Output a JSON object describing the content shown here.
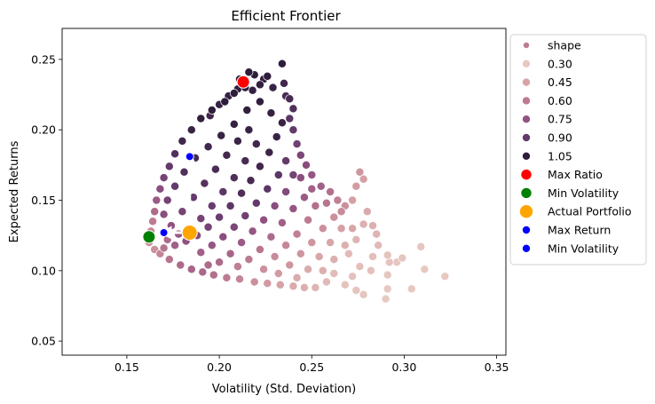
{
  "chart_data": {
    "type": "scatter",
    "title": "Efficient Frontier",
    "xlabel": "Volatility (Std. Deviation)",
    "ylabel": "Expected Returns",
    "xlim": [
      0.115,
      0.355
    ],
    "ylim": [
      0.04,
      0.272
    ],
    "xticks": [
      "0.15",
      "0.20",
      "0.25",
      "0.30",
      "0.35"
    ],
    "xtick_values": [
      0.15,
      0.2,
      0.25,
      0.3,
      0.35
    ],
    "yticks": [
      "0.05",
      "0.10",
      "0.15",
      "0.20",
      "0.25"
    ],
    "ytick_values": [
      0.05,
      0.1,
      0.15,
      0.2,
      0.25
    ],
    "grid": false,
    "legend_position": "outside-right",
    "hue_name": "shape",
    "hue_levels": [
      {
        "label": "0.30",
        "value": 0.3,
        "color": "#e7c9c2"
      },
      {
        "label": "0.45",
        "value": 0.45,
        "color": "#d7a3a6"
      },
      {
        "label": "0.60",
        "value": 0.6,
        "color": "#bd7b91"
      },
      {
        "label": "0.75",
        "value": 0.75,
        "color": "#935382"
      },
      {
        "label": "0.90",
        "value": 0.9,
        "color": "#633a6b"
      },
      {
        "label": "1.05",
        "value": 1.05,
        "color": "#2e1d3b"
      }
    ],
    "highlights": [
      {
        "name": "Max Ratio",
        "x": 0.213,
        "y": 0.234,
        "color": "#ff0000",
        "marker": "large"
      },
      {
        "name": "Min Volatility",
        "x": 0.162,
        "y": 0.124,
        "color": "#008000",
        "marker": "large"
      },
      {
        "name": "Actual Portfolio",
        "x": 0.184,
        "y": 0.127,
        "color": "#ffa500",
        "marker": "xlarge"
      },
      {
        "name": "Max Return",
        "x": 0.184,
        "y": 0.181,
        "color": "#0000ff",
        "marker": "small"
      },
      {
        "name": "Min Volatility",
        "x": 0.17,
        "y": 0.127,
        "color": "#0000ff",
        "marker": "small"
      }
    ],
    "arrows": [
      {
        "from": [
          0.184,
          0.127
        ],
        "to": [
          0.184,
          0.181
        ],
        "color": "#ffffff"
      },
      {
        "from": [
          0.184,
          0.127
        ],
        "to": [
          0.17,
          0.127
        ],
        "color": "#ffffff"
      }
    ],
    "scatter_points": [
      [
        0.162,
        0.12,
        0.5
      ],
      [
        0.163,
        0.128,
        0.55
      ],
      [
        0.164,
        0.135,
        0.6
      ],
      [
        0.165,
        0.142,
        0.66
      ],
      [
        0.166,
        0.15,
        0.72
      ],
      [
        0.168,
        0.158,
        0.78
      ],
      [
        0.17,
        0.166,
        0.84
      ],
      [
        0.173,
        0.174,
        0.9
      ],
      [
        0.176,
        0.183,
        0.95
      ],
      [
        0.18,
        0.192,
        1.0
      ],
      [
        0.185,
        0.2,
        1.02
      ],
      [
        0.19,
        0.208,
        1.04
      ],
      [
        0.196,
        0.214,
        1.05
      ],
      [
        0.203,
        0.22,
        1.05
      ],
      [
        0.208,
        0.226,
        1.06
      ],
      [
        0.214,
        0.23,
        1.05
      ],
      [
        0.219,
        0.239,
        1.07
      ],
      [
        0.224,
        0.236,
        1.04
      ],
      [
        0.229,
        0.23,
        1.02
      ],
      [
        0.234,
        0.247,
        1.06
      ],
      [
        0.235,
        0.233,
        1.0
      ],
      [
        0.222,
        0.232,
        1.04
      ],
      [
        0.218,
        0.228,
        1.03
      ],
      [
        0.211,
        0.236,
        1.05
      ],
      [
        0.216,
        0.241,
        1.08
      ],
      [
        0.226,
        0.238,
        1.05
      ],
      [
        0.21,
        0.229,
        1.04
      ],
      [
        0.205,
        0.224,
        1.03
      ],
      [
        0.2,
        0.218,
        1.02
      ],
      [
        0.195,
        0.21,
        1.0
      ],
      [
        0.238,
        0.222,
        0.98
      ],
      [
        0.24,
        0.215,
        0.95
      ],
      [
        0.238,
        0.208,
        0.92
      ],
      [
        0.236,
        0.224,
        0.97
      ],
      [
        0.24,
        0.2,
        0.9
      ],
      [
        0.242,
        0.19,
        0.86
      ],
      [
        0.244,
        0.182,
        0.82
      ],
      [
        0.247,
        0.175,
        0.78
      ],
      [
        0.25,
        0.168,
        0.74
      ],
      [
        0.255,
        0.16,
        0.7
      ],
      [
        0.26,
        0.156,
        0.64
      ],
      [
        0.264,
        0.15,
        0.58
      ],
      [
        0.268,
        0.146,
        0.52
      ],
      [
        0.272,
        0.15,
        0.46
      ],
      [
        0.274,
        0.16,
        0.48
      ],
      [
        0.276,
        0.17,
        0.5
      ],
      [
        0.278,
        0.165,
        0.46
      ],
      [
        0.28,
        0.142,
        0.42
      ],
      [
        0.283,
        0.132,
        0.4
      ],
      [
        0.285,
        0.126,
        0.38
      ],
      [
        0.278,
        0.133,
        0.4
      ],
      [
        0.274,
        0.122,
        0.38
      ],
      [
        0.27,
        0.112,
        0.36
      ],
      [
        0.276,
        0.103,
        0.34
      ],
      [
        0.272,
        0.096,
        0.33
      ],
      [
        0.268,
        0.09,
        0.32
      ],
      [
        0.274,
        0.086,
        0.32
      ],
      [
        0.278,
        0.083,
        0.31
      ],
      [
        0.29,
        0.08,
        0.3
      ],
      [
        0.291,
        0.087,
        0.3
      ],
      [
        0.291,
        0.097,
        0.31
      ],
      [
        0.292,
        0.106,
        0.32
      ],
      [
        0.291,
        0.111,
        0.32
      ],
      [
        0.296,
        0.106,
        0.31
      ],
      [
        0.299,
        0.109,
        0.31
      ],
      [
        0.304,
        0.087,
        0.3
      ],
      [
        0.309,
        0.117,
        0.31
      ],
      [
        0.311,
        0.101,
        0.3
      ],
      [
        0.322,
        0.096,
        0.3
      ],
      [
        0.283,
        0.11,
        0.34
      ],
      [
        0.286,
        0.118,
        0.36
      ],
      [
        0.282,
        0.1,
        0.33
      ],
      [
        0.262,
        0.098,
        0.35
      ],
      [
        0.258,
        0.092,
        0.36
      ],
      [
        0.252,
        0.088,
        0.38
      ],
      [
        0.246,
        0.088,
        0.4
      ],
      [
        0.24,
        0.089,
        0.42
      ],
      [
        0.233,
        0.09,
        0.45
      ],
      [
        0.226,
        0.091,
        0.48
      ],
      [
        0.219,
        0.092,
        0.52
      ],
      [
        0.211,
        0.094,
        0.56
      ],
      [
        0.204,
        0.095,
        0.6
      ],
      [
        0.197,
        0.097,
        0.64
      ],
      [
        0.191,
        0.099,
        0.67
      ],
      [
        0.185,
        0.101,
        0.68
      ],
      [
        0.179,
        0.104,
        0.66
      ],
      [
        0.173,
        0.108,
        0.62
      ],
      [
        0.168,
        0.112,
        0.56
      ],
      [
        0.165,
        0.115,
        0.52
      ],
      [
        0.17,
        0.116,
        0.62
      ],
      [
        0.176,
        0.118,
        0.7
      ],
      [
        0.182,
        0.121,
        0.76
      ],
      [
        0.188,
        0.125,
        0.8
      ],
      [
        0.194,
        0.131,
        0.84
      ],
      [
        0.2,
        0.138,
        0.88
      ],
      [
        0.206,
        0.146,
        0.92
      ],
      [
        0.212,
        0.155,
        0.96
      ],
      [
        0.217,
        0.164,
        0.98
      ],
      [
        0.222,
        0.174,
        1.0
      ],
      [
        0.227,
        0.184,
        1.01
      ],
      [
        0.231,
        0.195,
        1.02
      ],
      [
        0.234,
        0.205,
        1.02
      ],
      [
        0.228,
        0.212,
        1.03
      ],
      [
        0.222,
        0.22,
        1.04
      ],
      [
        0.215,
        0.214,
        1.04
      ],
      [
        0.208,
        0.204,
        1.03
      ],
      [
        0.201,
        0.196,
        1.02
      ],
      [
        0.194,
        0.188,
        1.0
      ],
      [
        0.187,
        0.18,
        0.98
      ],
      [
        0.181,
        0.17,
        0.95
      ],
      [
        0.176,
        0.16,
        0.9
      ],
      [
        0.172,
        0.15,
        0.84
      ],
      [
        0.17,
        0.14,
        0.78
      ],
      [
        0.174,
        0.132,
        0.76
      ],
      [
        0.18,
        0.142,
        0.84
      ],
      [
        0.186,
        0.152,
        0.9
      ],
      [
        0.192,
        0.162,
        0.94
      ],
      [
        0.198,
        0.172,
        0.97
      ],
      [
        0.204,
        0.182,
        0.99
      ],
      [
        0.21,
        0.192,
        1.01
      ],
      [
        0.216,
        0.2,
        1.02
      ],
      [
        0.22,
        0.19,
        1.0
      ],
      [
        0.214,
        0.178,
        0.98
      ],
      [
        0.208,
        0.166,
        0.95
      ],
      [
        0.202,
        0.156,
        0.92
      ],
      [
        0.196,
        0.146,
        0.88
      ],
      [
        0.19,
        0.137,
        0.84
      ],
      [
        0.184,
        0.13,
        0.8
      ],
      [
        0.178,
        0.126,
        0.74
      ],
      [
        0.172,
        0.122,
        0.66
      ],
      [
        0.19,
        0.113,
        0.7
      ],
      [
        0.196,
        0.118,
        0.74
      ],
      [
        0.202,
        0.124,
        0.78
      ],
      [
        0.208,
        0.131,
        0.82
      ],
      [
        0.214,
        0.139,
        0.86
      ],
      [
        0.22,
        0.148,
        0.9
      ],
      [
        0.226,
        0.158,
        0.92
      ],
      [
        0.232,
        0.168,
        0.92
      ],
      [
        0.236,
        0.178,
        0.9
      ],
      [
        0.24,
        0.168,
        0.84
      ],
      [
        0.236,
        0.156,
        0.8
      ],
      [
        0.23,
        0.146,
        0.78
      ],
      [
        0.224,
        0.136,
        0.76
      ],
      [
        0.218,
        0.128,
        0.74
      ],
      [
        0.212,
        0.12,
        0.72
      ],
      [
        0.206,
        0.112,
        0.68
      ],
      [
        0.2,
        0.106,
        0.66
      ],
      [
        0.194,
        0.104,
        0.66
      ],
      [
        0.21,
        0.103,
        0.58
      ],
      [
        0.216,
        0.108,
        0.6
      ],
      [
        0.222,
        0.115,
        0.62
      ],
      [
        0.228,
        0.124,
        0.66
      ],
      [
        0.234,
        0.134,
        0.7
      ],
      [
        0.24,
        0.144,
        0.74
      ],
      [
        0.246,
        0.152,
        0.72
      ],
      [
        0.252,
        0.146,
        0.64
      ],
      [
        0.248,
        0.136,
        0.6
      ],
      [
        0.242,
        0.126,
        0.58
      ],
      [
        0.236,
        0.118,
        0.56
      ],
      [
        0.23,
        0.11,
        0.54
      ],
      [
        0.224,
        0.101,
        0.52
      ],
      [
        0.232,
        0.098,
        0.48
      ],
      [
        0.238,
        0.104,
        0.5
      ],
      [
        0.244,
        0.112,
        0.5
      ],
      [
        0.25,
        0.12,
        0.5
      ],
      [
        0.256,
        0.13,
        0.52
      ],
      [
        0.262,
        0.138,
        0.52
      ],
      [
        0.266,
        0.13,
        0.46
      ],
      [
        0.26,
        0.12,
        0.44
      ],
      [
        0.254,
        0.11,
        0.44
      ],
      [
        0.248,
        0.101,
        0.42
      ],
      [
        0.242,
        0.095,
        0.42
      ],
      [
        0.256,
        0.1,
        0.4
      ],
      [
        0.262,
        0.108,
        0.4
      ],
      [
        0.268,
        0.118,
        0.4
      ],
      [
        0.272,
        0.13,
        0.44
      ],
      [
        0.266,
        0.142,
        0.54
      ],
      [
        0.258,
        0.148,
        0.62
      ],
      [
        0.25,
        0.158,
        0.7
      ],
      [
        0.244,
        0.166,
        0.78
      ]
    ]
  },
  "legend": {
    "items": [
      {
        "label": "shape",
        "kind": "hue-title",
        "color": "#bd7b91"
      },
      {
        "label": "0.30",
        "kind": "hue",
        "color": "#e7c9c2"
      },
      {
        "label": "0.45",
        "kind": "hue",
        "color": "#d7a3a6"
      },
      {
        "label": "0.60",
        "kind": "hue",
        "color": "#bd7b91"
      },
      {
        "label": "0.75",
        "kind": "hue",
        "color": "#935382"
      },
      {
        "label": "0.90",
        "kind": "hue",
        "color": "#633a6b"
      },
      {
        "label": "1.05",
        "kind": "hue",
        "color": "#2e1d3b"
      },
      {
        "label": "Max Ratio",
        "kind": "marker",
        "color": "#ff0000"
      },
      {
        "label": "Min Volatility",
        "kind": "marker",
        "color": "#008000"
      },
      {
        "label": "Actual Portfolio",
        "kind": "marker-xl",
        "color": "#ffa500"
      },
      {
        "label": "Max Return",
        "kind": "marker-sm",
        "color": "#0000ff"
      },
      {
        "label": "Min Volatility",
        "kind": "marker-sm",
        "color": "#0000ff"
      }
    ]
  }
}
